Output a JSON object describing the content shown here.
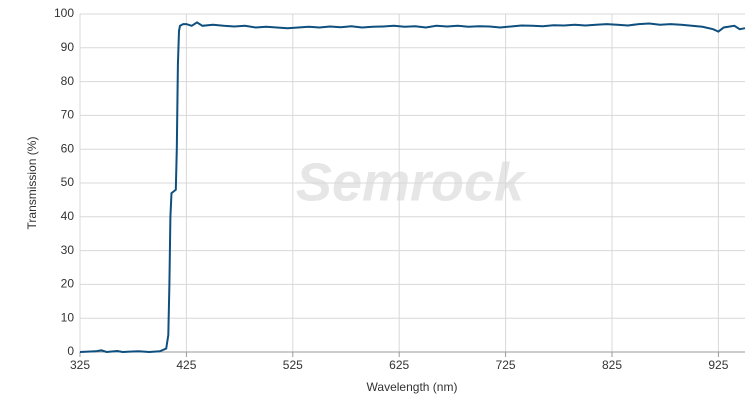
{
  "chart_data": {
    "type": "line",
    "x_label": "Wavelength (nm)",
    "y_label": "Transmission (%)",
    "watermark": "Semrock",
    "xlim": [
      325,
      950
    ],
    "xticks": [
      325,
      425,
      525,
      625,
      725,
      825,
      925
    ],
    "ylim": [
      0,
      100
    ],
    "yticks": [
      0,
      10,
      20,
      30,
      40,
      50,
      60,
      70,
      80,
      90,
      100
    ],
    "grid": true,
    "x": [
      325,
      340,
      345,
      350,
      360,
      365,
      380,
      390,
      400,
      406,
      408,
      409,
      410,
      411,
      413,
      415,
      416,
      417,
      418,
      419,
      422,
      425,
      430,
      435,
      440,
      450,
      460,
      470,
      480,
      490,
      500,
      510,
      520,
      530,
      540,
      550,
      560,
      570,
      580,
      590,
      600,
      610,
      620,
      630,
      640,
      650,
      660,
      670,
      680,
      690,
      700,
      710,
      720,
      730,
      740,
      750,
      760,
      770,
      780,
      790,
      800,
      810,
      820,
      830,
      840,
      850,
      860,
      870,
      880,
      890,
      900,
      910,
      920,
      925,
      930,
      940,
      945,
      950
    ],
    "series": [
      {
        "name": "Transmission",
        "color": "#0e4f7e",
        "values": [
          0,
          0.2,
          0.5,
          0,
          0.3,
          0,
          0.2,
          0,
          0.2,
          1,
          5,
          20,
          40,
          47,
          47.5,
          48,
          60,
          85,
          95,
          96.5,
          97,
          97,
          96.5,
          97.5,
          96.5,
          96.8,
          96.5,
          96.3,
          96.5,
          96,
          96.2,
          96,
          95.8,
          96,
          96.2,
          96,
          96.3,
          96.1,
          96.4,
          96,
          96.2,
          96.3,
          96.5,
          96.2,
          96.4,
          96,
          96.5,
          96.3,
          96.5,
          96.2,
          96.4,
          96.3,
          96,
          96.3,
          96.6,
          96.5,
          96.4,
          96.7,
          96.6,
          96.8,
          96.6,
          96.8,
          97,
          96.8,
          96.6,
          97,
          97.2,
          96.8,
          97,
          96.8,
          96.5,
          96.2,
          95.5,
          94.8,
          96,
          96.5,
          95.5,
          95.8
        ]
      }
    ]
  }
}
